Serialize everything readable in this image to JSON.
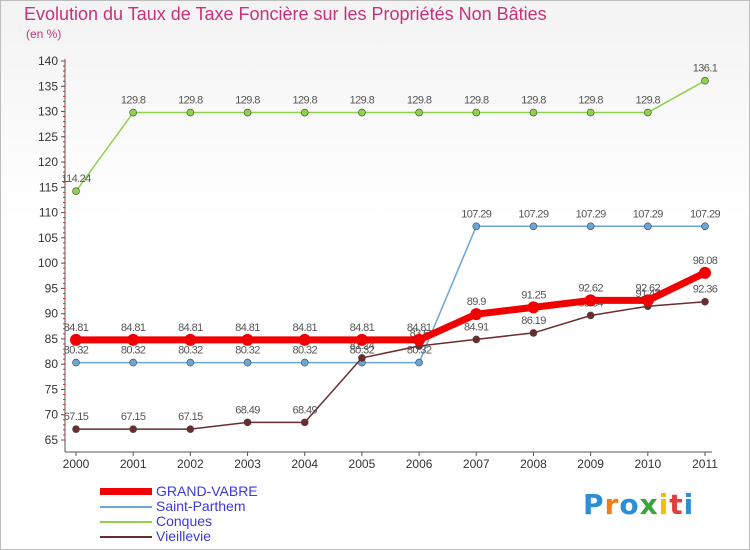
{
  "title": "Evolution du Taux de Taxe Foncière sur les Propriétés Non Bâties",
  "subtitle": "(en %)",
  "logo": {
    "letters": [
      "P",
      "r",
      "o",
      "x",
      "i",
      "t",
      "i"
    ],
    "colors": [
      "#2b8fd8",
      "#f07c1a",
      "#2b8fd8",
      "#3aa53a",
      "#f0c000",
      "#e23c3c",
      "#2b8fd8"
    ]
  },
  "chart_data": {
    "type": "line",
    "title": "Evolution du Taux de Taxe Foncière sur les Propriétés Non Bâties",
    "ylabel": "(en %)",
    "xlabel": "",
    "ylim": [
      65,
      140
    ],
    "yticks": [
      65,
      70,
      75,
      80,
      85,
      90,
      95,
      100,
      105,
      110,
      115,
      120,
      125,
      130,
      135,
      140
    ],
    "categories": [
      "2000",
      "2001",
      "2002",
      "2003",
      "2004",
      "2005",
      "2006",
      "2007",
      "2008",
      "2009",
      "2010",
      "2011"
    ],
    "series": [
      {
        "name": "Conques",
        "color": "#8ed14a",
        "width": 1.5,
        "marker": 3.5,
        "values": [
          114.24,
          129.8,
          129.8,
          129.8,
          129.8,
          129.8,
          129.8,
          129.8,
          129.8,
          129.8,
          129.8,
          136.1
        ],
        "labels": [
          "114.24",
          "129.8",
          "129.8",
          "129.8",
          "129.8",
          "129.8",
          "129.8",
          "129.8",
          "129.8",
          "129.8",
          "129.8",
          "136.1"
        ]
      },
      {
        "name": "Saint-Parthem",
        "color": "#6aa6d8",
        "width": 1.5,
        "marker": 3.5,
        "values": [
          80.32,
          80.32,
          80.32,
          80.32,
          80.32,
          80.32,
          80.32,
          107.29,
          107.29,
          107.29,
          107.29,
          107.29
        ],
        "labels": [
          "80.32",
          "80.32",
          "80.32",
          "80.32",
          "80.32",
          "80.32",
          "80.32",
          "107.29",
          "107.29",
          "107.29",
          "107.29",
          "107.29"
        ]
      },
      {
        "name": "Vieillevie",
        "color": "#6b2d2d",
        "width": 1.5,
        "marker": 3.5,
        "values": [
          67.15,
          67.15,
          67.15,
          68.49,
          68.49,
          81.24,
          83.6,
          84.91,
          86.19,
          89.64,
          91.47,
          92.36
        ],
        "labels": [
          "67.15",
          "67.15",
          "67.15",
          "68.49",
          "68.49",
          "81.24",
          "83.6",
          "84.91",
          "86.19",
          "89.64",
          "91.47",
          "92.36"
        ]
      },
      {
        "name": "GRAND-VABRE",
        "color": "#f00000",
        "width": 7,
        "marker": 6,
        "values": [
          84.81,
          84.81,
          84.81,
          84.81,
          84.81,
          84.81,
          84.81,
          89.9,
          91.25,
          92.62,
          92.62,
          98.08
        ],
        "labels": [
          "84.81",
          "84.81",
          "84.81",
          "84.81",
          "84.81",
          "84.81",
          "84.81",
          "89.9",
          "91.25",
          "92.62",
          "92.62",
          "98.08"
        ]
      }
    ],
    "legend": [
      "GRAND-VABRE",
      "Saint-Parthem",
      "Conques",
      "Vieillevie"
    ],
    "legend_position": "bottom-left",
    "grid": false
  }
}
